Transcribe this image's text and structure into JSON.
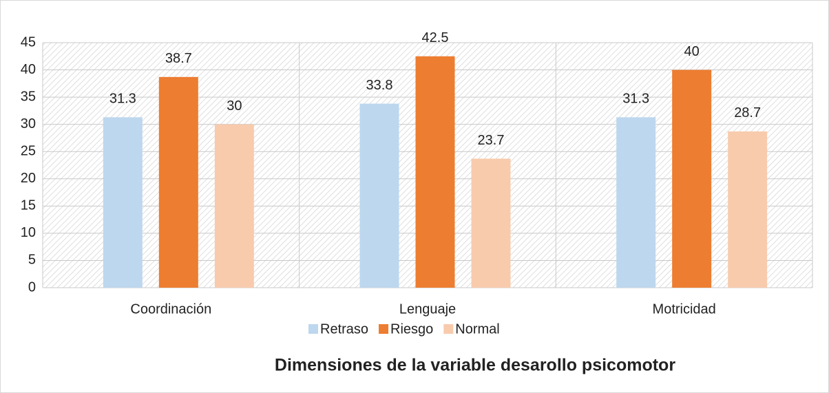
{
  "chart_data": {
    "type": "bar",
    "title": "Dimensiones de la variable desarollo psicomotor",
    "categories": [
      "Coordinación",
      "Lenguaje",
      "Motricidad"
    ],
    "series": [
      {
        "name": "Retraso",
        "color": "#bdd7ee",
        "values": [
          31.3,
          33.8,
          31.3
        ]
      },
      {
        "name": "Riesgo",
        "color": "#ed7d31",
        "values": [
          38.7,
          42.5,
          40
        ]
      },
      {
        "name": "Normal",
        "color": "#f8cbad",
        "values": [
          30,
          23.7,
          28.7
        ]
      }
    ],
    "ylim": [
      0,
      45
    ],
    "yticks": [
      0,
      5,
      10,
      15,
      20,
      25,
      30,
      35,
      40,
      45
    ],
    "grid": true
  }
}
